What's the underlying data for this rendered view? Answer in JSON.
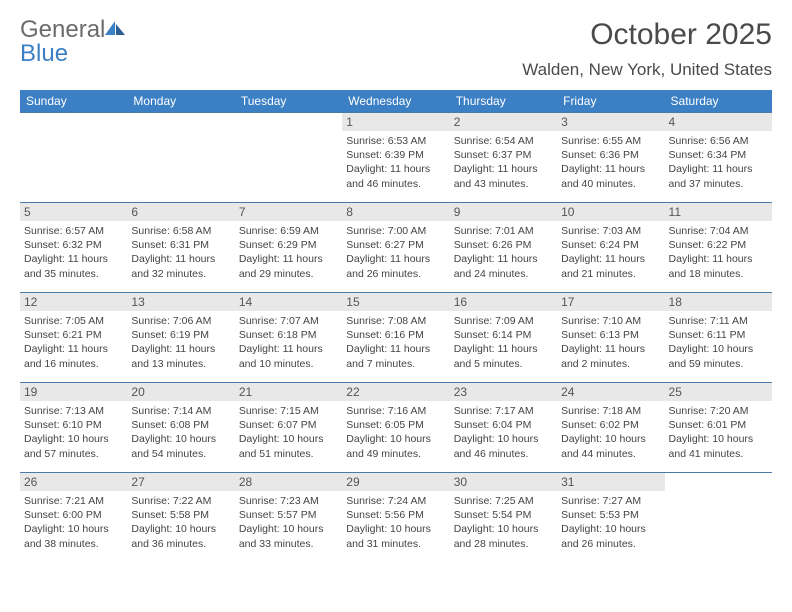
{
  "brand": {
    "part1": "General",
    "part2": "Blue"
  },
  "title": "October 2025",
  "location": "Walden, New York, United States",
  "header_bg": "#3b7fc4",
  "days_of_week": [
    "Sunday",
    "Monday",
    "Tuesday",
    "Wednesday",
    "Thursday",
    "Friday",
    "Saturday"
  ],
  "grid": [
    [
      null,
      null,
      null,
      {
        "n": "1",
        "sr": "6:53 AM",
        "ss": "6:39 PM",
        "dl": "11 hours and 46 minutes."
      },
      {
        "n": "2",
        "sr": "6:54 AM",
        "ss": "6:37 PM",
        "dl": "11 hours and 43 minutes."
      },
      {
        "n": "3",
        "sr": "6:55 AM",
        "ss": "6:36 PM",
        "dl": "11 hours and 40 minutes."
      },
      {
        "n": "4",
        "sr": "6:56 AM",
        "ss": "6:34 PM",
        "dl": "11 hours and 37 minutes."
      }
    ],
    [
      {
        "n": "5",
        "sr": "6:57 AM",
        "ss": "6:32 PM",
        "dl": "11 hours and 35 minutes."
      },
      {
        "n": "6",
        "sr": "6:58 AM",
        "ss": "6:31 PM",
        "dl": "11 hours and 32 minutes."
      },
      {
        "n": "7",
        "sr": "6:59 AM",
        "ss": "6:29 PM",
        "dl": "11 hours and 29 minutes."
      },
      {
        "n": "8",
        "sr": "7:00 AM",
        "ss": "6:27 PM",
        "dl": "11 hours and 26 minutes."
      },
      {
        "n": "9",
        "sr": "7:01 AM",
        "ss": "6:26 PM",
        "dl": "11 hours and 24 minutes."
      },
      {
        "n": "10",
        "sr": "7:03 AM",
        "ss": "6:24 PM",
        "dl": "11 hours and 21 minutes."
      },
      {
        "n": "11",
        "sr": "7:04 AM",
        "ss": "6:22 PM",
        "dl": "11 hours and 18 minutes."
      }
    ],
    [
      {
        "n": "12",
        "sr": "7:05 AM",
        "ss": "6:21 PM",
        "dl": "11 hours and 16 minutes."
      },
      {
        "n": "13",
        "sr": "7:06 AM",
        "ss": "6:19 PM",
        "dl": "11 hours and 13 minutes."
      },
      {
        "n": "14",
        "sr": "7:07 AM",
        "ss": "6:18 PM",
        "dl": "11 hours and 10 minutes."
      },
      {
        "n": "15",
        "sr": "7:08 AM",
        "ss": "6:16 PM",
        "dl": "11 hours and 7 minutes."
      },
      {
        "n": "16",
        "sr": "7:09 AM",
        "ss": "6:14 PM",
        "dl": "11 hours and 5 minutes."
      },
      {
        "n": "17",
        "sr": "7:10 AM",
        "ss": "6:13 PM",
        "dl": "11 hours and 2 minutes."
      },
      {
        "n": "18",
        "sr": "7:11 AM",
        "ss": "6:11 PM",
        "dl": "10 hours and 59 minutes."
      }
    ],
    [
      {
        "n": "19",
        "sr": "7:13 AM",
        "ss": "6:10 PM",
        "dl": "10 hours and 57 minutes."
      },
      {
        "n": "20",
        "sr": "7:14 AM",
        "ss": "6:08 PM",
        "dl": "10 hours and 54 minutes."
      },
      {
        "n": "21",
        "sr": "7:15 AM",
        "ss": "6:07 PM",
        "dl": "10 hours and 51 minutes."
      },
      {
        "n": "22",
        "sr": "7:16 AM",
        "ss": "6:05 PM",
        "dl": "10 hours and 49 minutes."
      },
      {
        "n": "23",
        "sr": "7:17 AM",
        "ss": "6:04 PM",
        "dl": "10 hours and 46 minutes."
      },
      {
        "n": "24",
        "sr": "7:18 AM",
        "ss": "6:02 PM",
        "dl": "10 hours and 44 minutes."
      },
      {
        "n": "25",
        "sr": "7:20 AM",
        "ss": "6:01 PM",
        "dl": "10 hours and 41 minutes."
      }
    ],
    [
      {
        "n": "26",
        "sr": "7:21 AM",
        "ss": "6:00 PM",
        "dl": "10 hours and 38 minutes."
      },
      {
        "n": "27",
        "sr": "7:22 AM",
        "ss": "5:58 PM",
        "dl": "10 hours and 36 minutes."
      },
      {
        "n": "28",
        "sr": "7:23 AM",
        "ss": "5:57 PM",
        "dl": "10 hours and 33 minutes."
      },
      {
        "n": "29",
        "sr": "7:24 AM",
        "ss": "5:56 PM",
        "dl": "10 hours and 31 minutes."
      },
      {
        "n": "30",
        "sr": "7:25 AM",
        "ss": "5:54 PM",
        "dl": "10 hours and 28 minutes."
      },
      {
        "n": "31",
        "sr": "7:27 AM",
        "ss": "5:53 PM",
        "dl": "10 hours and 26 minutes."
      },
      null
    ]
  ],
  "labels": {
    "sunrise": "Sunrise:",
    "sunset": "Sunset:",
    "daylight": "Daylight:"
  },
  "style": {
    "daynum_bg": "#e8e8e8",
    "border_color": "#4a7aa8",
    "header_text": "#ffffff",
    "body_text": "#444444",
    "title_color": "#4a4a4a",
    "cell_font_size": 10.5,
    "header_font_size": 12,
    "title_font_size": 30,
    "location_font_size": 17
  }
}
